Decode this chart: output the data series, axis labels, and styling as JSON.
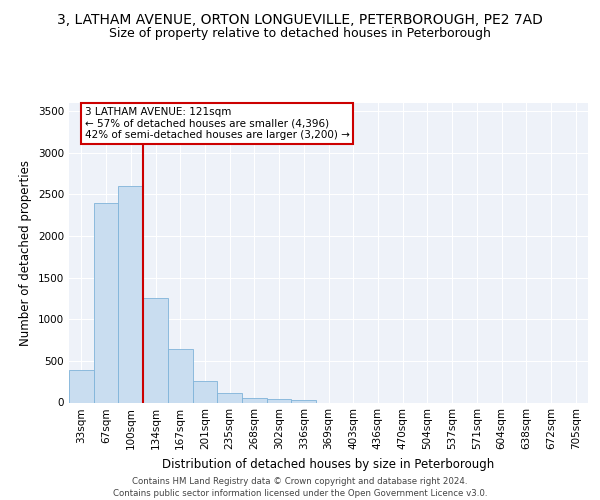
{
  "title_line1": "3, LATHAM AVENUE, ORTON LONGUEVILLE, PETERBOROUGH, PE2 7AD",
  "title_line2": "Size of property relative to detached houses in Peterborough",
  "xlabel": "Distribution of detached houses by size in Peterborough",
  "ylabel": "Number of detached properties",
  "footnote1": "Contains HM Land Registry data © Crown copyright and database right 2024.",
  "footnote2": "Contains public sector information licensed under the Open Government Licence v3.0.",
  "bar_labels": [
    "33sqm",
    "67sqm",
    "100sqm",
    "134sqm",
    "167sqm",
    "201sqm",
    "235sqm",
    "268sqm",
    "302sqm",
    "336sqm",
    "369sqm",
    "403sqm",
    "436sqm",
    "470sqm",
    "504sqm",
    "537sqm",
    "571sqm",
    "604sqm",
    "638sqm",
    "672sqm",
    "705sqm"
  ],
  "bar_values": [
    390,
    2400,
    2600,
    1250,
    640,
    260,
    110,
    60,
    45,
    35,
    0,
    0,
    0,
    0,
    0,
    0,
    0,
    0,
    0,
    0,
    0
  ],
  "bar_color": "#c9ddf0",
  "bar_edgecolor": "#7fb3d9",
  "vline_color": "#cc0000",
  "vline_bar_index": 2,
  "ylim": [
    0,
    3600
  ],
  "yticks": [
    0,
    500,
    1000,
    1500,
    2000,
    2500,
    3000,
    3500
  ],
  "annotation_title": "3 LATHAM AVENUE: 121sqm",
  "annotation_line1": "← 57% of detached houses are smaller (4,396)",
  "annotation_line2": "42% of semi-detached houses are larger (3,200) →",
  "annotation_box_edgecolor": "#cc0000",
  "background_color": "#eef2f9",
  "grid_color": "#ffffff",
  "title_fontsize": 10,
  "subtitle_fontsize": 9,
  "axis_label_fontsize": 8.5,
  "tick_fontsize": 7.5,
  "annotation_fontsize": 7.5,
  "footnote_fontsize": 6.2
}
